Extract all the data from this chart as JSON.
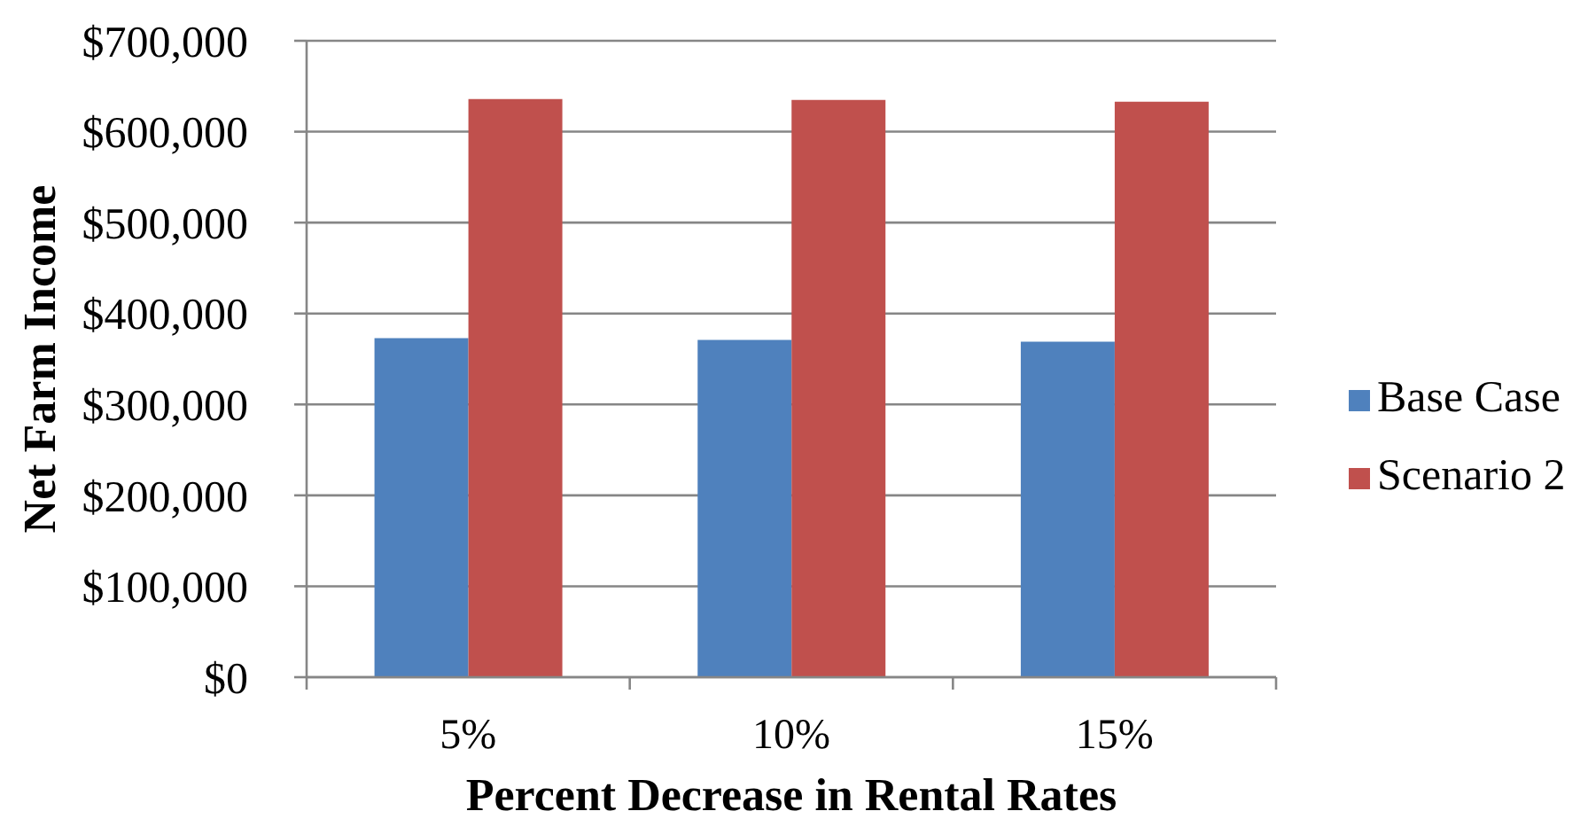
{
  "chart_data": {
    "type": "bar",
    "xlabel": "Percent Decrease in Rental Rates",
    "ylabel": "Net Farm Income",
    "categories": [
      "5%",
      "10%",
      "15%"
    ],
    "series": [
      {
        "name": "Base Case",
        "color": "#4f81bd",
        "values": [
          373000,
          371000,
          369000
        ]
      },
      {
        "name": "Scenario 2",
        "color": "#c0504d",
        "values": [
          636000,
          635000,
          633000
        ]
      }
    ],
    "ylim": [
      0,
      700000
    ],
    "yticks": [
      {
        "value": 0,
        "label": "$0"
      },
      {
        "value": 100000,
        "label": "$100,000"
      },
      {
        "value": 200000,
        "label": "$200,000"
      },
      {
        "value": 300000,
        "label": "$300,000"
      },
      {
        "value": 400000,
        "label": "$400,000"
      },
      {
        "value": 500000,
        "label": "$500,000"
      },
      {
        "value": 600000,
        "label": "$600,000"
      },
      {
        "value": 700000,
        "label": "$700,000"
      }
    ],
    "grid": "y",
    "legend": "right"
  }
}
